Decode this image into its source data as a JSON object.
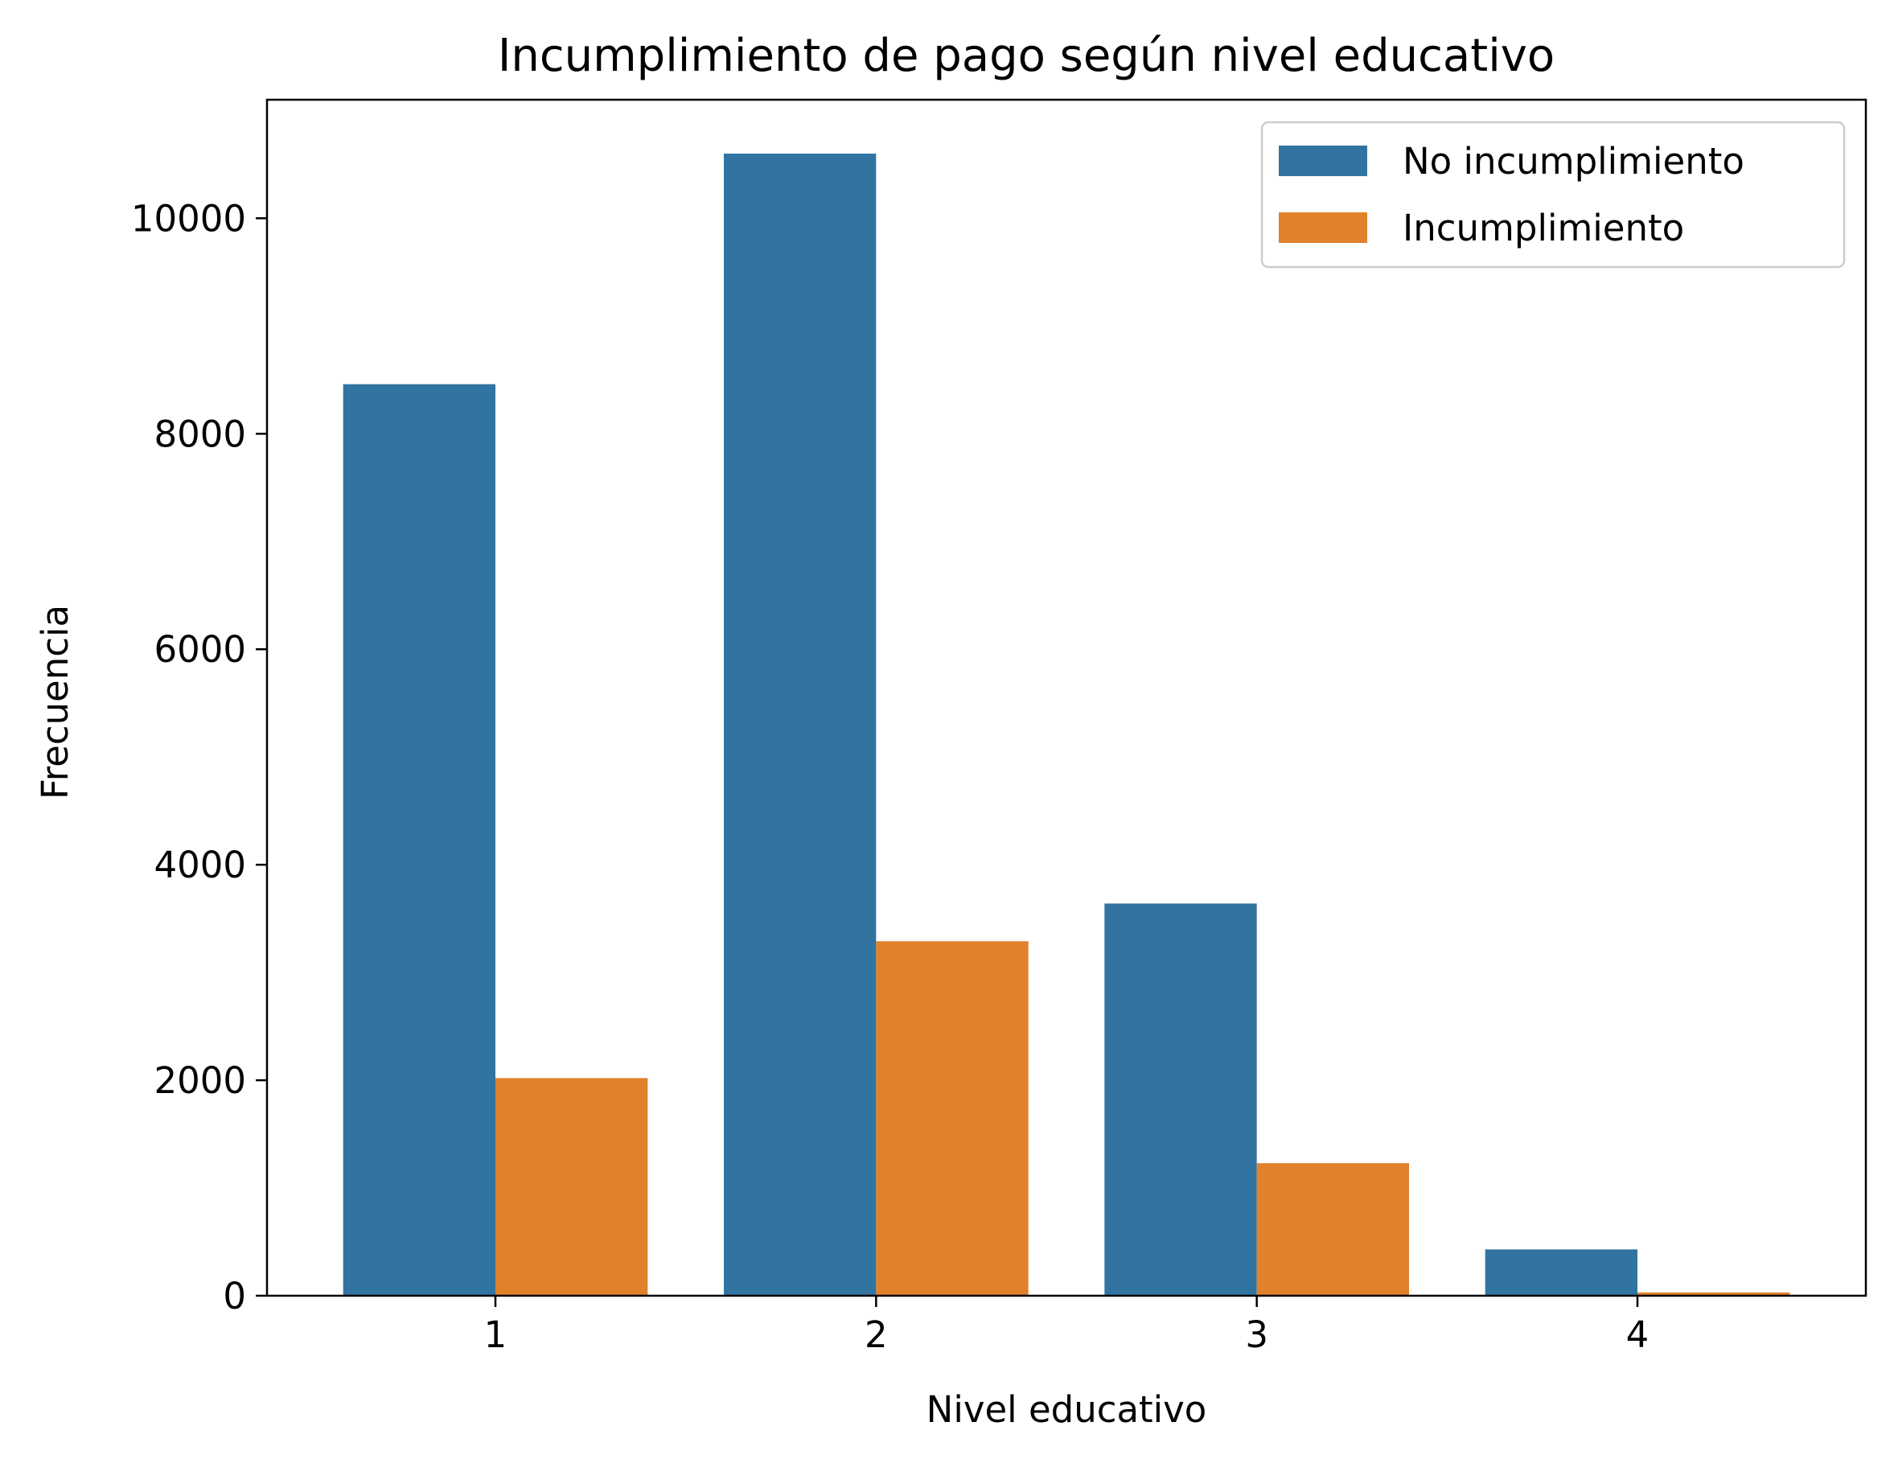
{
  "chart_data": {
    "type": "bar",
    "title": "Incumplimiento de pago según nivel educativo",
    "xlabel": "Nivel educativo",
    "ylabel": "Frecuencia",
    "categories": [
      "1",
      "2",
      "3",
      "4"
    ],
    "series": [
      {
        "name": "No incumplimiento",
        "color": "#3274a1",
        "values": [
          8460,
          10600,
          3640,
          430
        ]
      },
      {
        "name": "Incumplimiento",
        "color": "#e1812c",
        "values": [
          2020,
          3290,
          1230,
          30
        ]
      }
    ],
    "ylim": [
      0,
      11100
    ],
    "yticks": [
      0,
      2000,
      4000,
      6000,
      8000,
      10000
    ],
    "ytick_labels": [
      "0",
      "2000",
      "4000",
      "6000",
      "8000",
      "10000"
    ],
    "grid": false,
    "legend_position": "top-right"
  }
}
